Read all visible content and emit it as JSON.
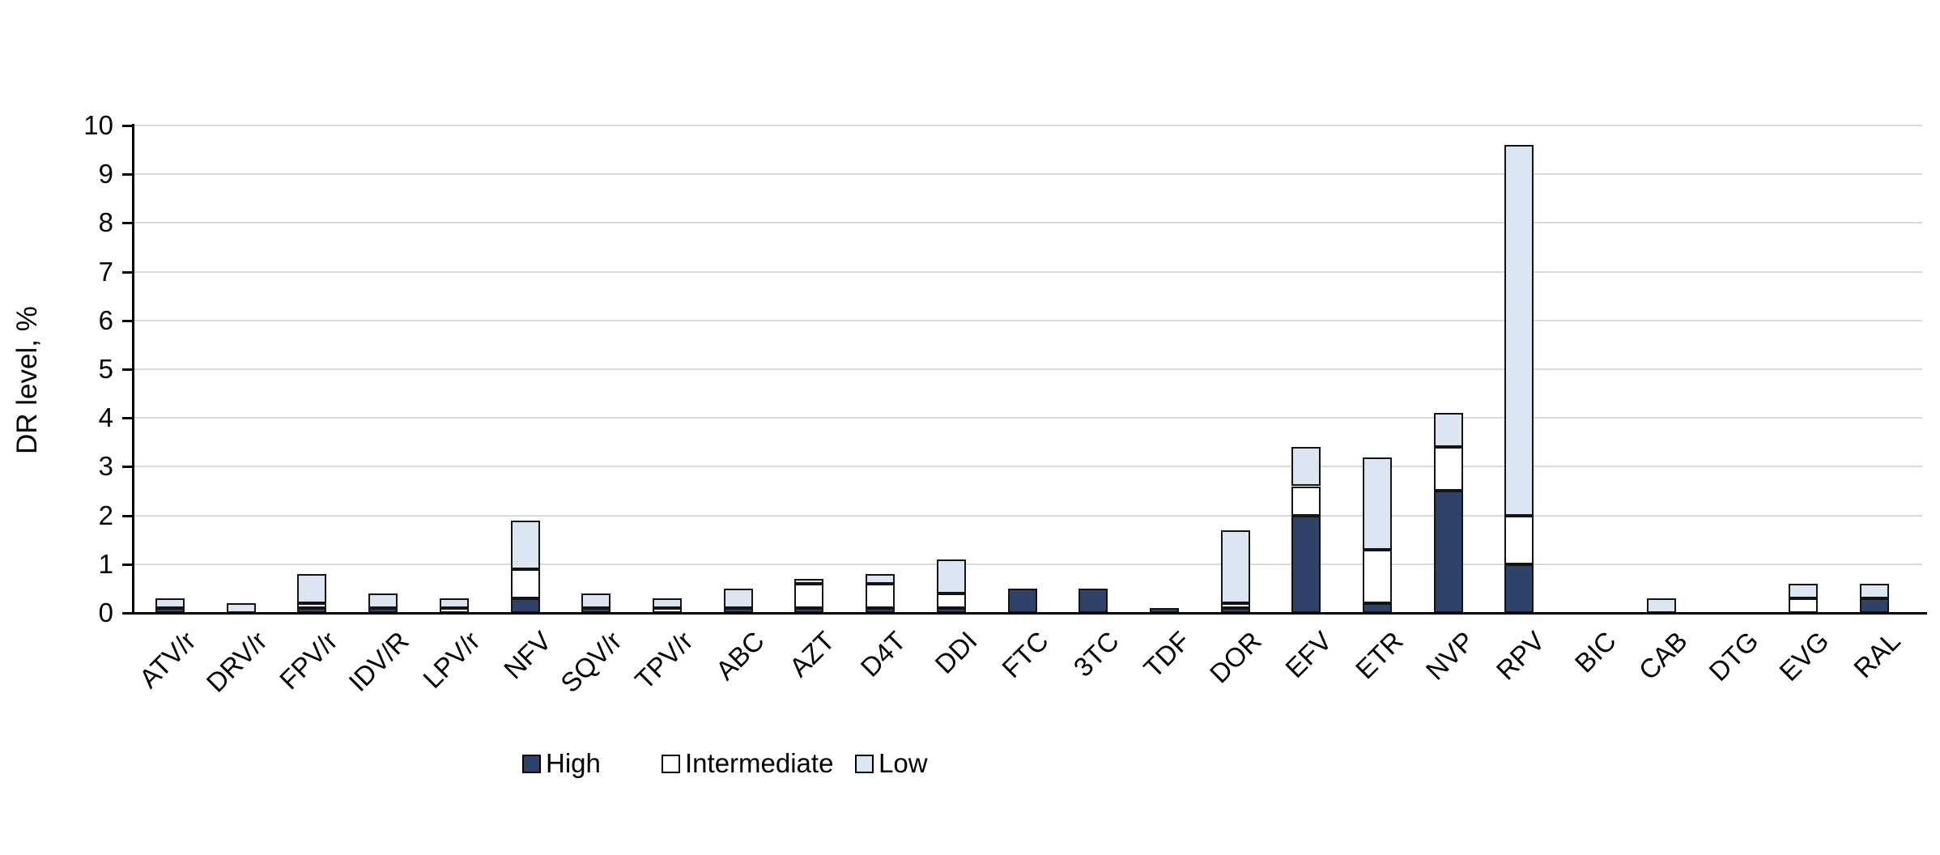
{
  "chart_data": {
    "type": "bar",
    "stacked": true,
    "title": "",
    "xlabel": "",
    "ylabel": "DR level, %",
    "ylim": [
      0,
      10
    ],
    "ytick_interval": 1,
    "grid": true,
    "legend_position": "bottom",
    "categories": [
      "ATV/r",
      "DRV/r",
      "FPV/r",
      "IDV/R",
      "LPV/r",
      "NFV",
      "SQV/r",
      "TPV/r",
      "ABC",
      "AZT",
      "D4T",
      "DDI",
      "FTC",
      "3TC",
      "TDF",
      "DOR",
      "EFV",
      "ETR",
      "NVP",
      "RPV",
      "BIC",
      "CAB",
      "DTG",
      "EVG",
      "RAL"
    ],
    "series": [
      {
        "name": "High",
        "color": "#2f4269",
        "values": [
          0.1,
          0,
          0.1,
          0.1,
          0,
          0.3,
          0.1,
          0,
          0.1,
          0.1,
          0.1,
          0.1,
          0.5,
          0.5,
          0.1,
          0.1,
          2.0,
          0.2,
          2.5,
          1.0,
          0,
          0,
          0,
          0,
          0.3
        ]
      },
      {
        "name": "Intermediate",
        "color": "#ffffff",
        "values": [
          0,
          0,
          0.1,
          0,
          0.1,
          0.6,
          0,
          0.1,
          0,
          0.5,
          0.5,
          0.3,
          0,
          0,
          0,
          0.1,
          0.6,
          1.1,
          0.9,
          1.0,
          0,
          0,
          0,
          0.3,
          0
        ]
      },
      {
        "name": "Low",
        "color": "#dce6f2",
        "values": [
          0.2,
          0.2,
          0.6,
          0.3,
          0.2,
          1.0,
          0.3,
          0.2,
          0.4,
          0.1,
          0.2,
          0.7,
          0,
          0,
          0,
          1.5,
          0.8,
          1.9,
          0.7,
          7.6,
          0,
          0.3,
          0,
          0.3,
          0.3
        ]
      }
    ]
  },
  "style_colors": {
    "gridline": "#d9d9d9",
    "axis": "#000000",
    "bar_border": "#141414",
    "text": "#000000"
  }
}
